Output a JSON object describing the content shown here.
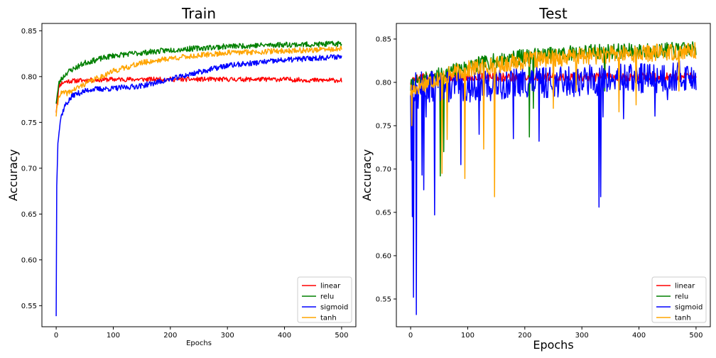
{
  "chart_data": [
    {
      "type": "line",
      "title": "Train",
      "xlabel": "Epochs",
      "ylabel": "Accuracy",
      "xlim": [
        -25,
        525
      ],
      "ylim": [
        0.527,
        0.858
      ],
      "xticks": [
        0,
        100,
        200,
        300,
        400,
        500
      ],
      "yticks": [
        0.55,
        0.6,
        0.65,
        0.7,
        0.75,
        0.8,
        0.85
      ],
      "grid": false,
      "legend_position": "lower-right",
      "series": [
        {
          "name": "linear",
          "color": "#ff0000",
          "x": [
            0,
            5,
            10,
            20,
            50,
            100,
            150,
            200,
            250,
            300,
            350,
            400,
            450,
            500
          ],
          "y": [
            0.762,
            0.79,
            0.793,
            0.795,
            0.796,
            0.797,
            0.797,
            0.797,
            0.797,
            0.797,
            0.797,
            0.797,
            0.796,
            0.796
          ],
          "noise": 0.0025,
          "seed": 11
        },
        {
          "name": "relu",
          "color": "#008000",
          "x": [
            0,
            5,
            10,
            20,
            50,
            100,
            150,
            200,
            250,
            300,
            350,
            400,
            450,
            500
          ],
          "y": [
            0.772,
            0.793,
            0.798,
            0.805,
            0.815,
            0.823,
            0.826,
            0.829,
            0.831,
            0.833,
            0.834,
            0.835,
            0.835,
            0.836
          ],
          "noise": 0.003,
          "seed": 23
        },
        {
          "name": "sigmoid",
          "color": "#0000ff",
          "x": [
            0,
            1,
            3,
            8,
            15,
            30,
            60,
            100,
            150,
            200,
            250,
            300,
            350,
            400,
            450,
            500
          ],
          "y": [
            0.54,
            0.68,
            0.73,
            0.755,
            0.768,
            0.78,
            0.786,
            0.787,
            0.79,
            0.797,
            0.805,
            0.812,
            0.815,
            0.818,
            0.82,
            0.822
          ],
          "noise": 0.003,
          "seed": 37
        },
        {
          "name": "tanh",
          "color": "#ffa500",
          "x": [
            0,
            5,
            10,
            20,
            50,
            100,
            150,
            200,
            250,
            300,
            350,
            400,
            450,
            500
          ],
          "y": [
            0.758,
            0.78,
            0.782,
            0.782,
            0.792,
            0.806,
            0.815,
            0.82,
            0.823,
            0.826,
            0.827,
            0.828,
            0.829,
            0.83
          ],
          "noise": 0.003,
          "seed": 41
        }
      ]
    },
    {
      "type": "line",
      "title": "Test",
      "xlabel": "Epochs",
      "ylabel": "Accuracy",
      "xlim": [
        -25,
        525
      ],
      "ylim": [
        0.518,
        0.868
      ],
      "xticks": [
        0,
        100,
        200,
        300,
        400,
        500
      ],
      "yticks": [
        0.55,
        0.6,
        0.65,
        0.7,
        0.75,
        0.8,
        0.85
      ],
      "grid": false,
      "legend_position": "lower-right",
      "series": [
        {
          "name": "linear",
          "color": "#ff0000",
          "x": [
            0,
            10,
            50,
            100,
            200,
            300,
            400,
            500
          ],
          "y": [
            0.8,
            0.805,
            0.806,
            0.806,
            0.806,
            0.806,
            0.806,
            0.806
          ],
          "noise": 0.005,
          "seed": 5,
          "dips": [
            [
              2,
              0.79
            ],
            [
              5,
              0.795
            ]
          ]
        },
        {
          "name": "relu",
          "color": "#008000",
          "x": [
            0,
            10,
            50,
            100,
            150,
            200,
            250,
            300,
            350,
            400,
            450,
            500
          ],
          "y": [
            0.795,
            0.8,
            0.808,
            0.818,
            0.825,
            0.83,
            0.832,
            0.835,
            0.836,
            0.836,
            0.837,
            0.838
          ],
          "noise": 0.009,
          "seed": 7,
          "dips": [
            [
              52,
              0.692
            ],
            [
              58,
              0.72
            ],
            [
              208,
              0.737
            ],
            [
              215,
              0.77
            ],
            [
              340,
              0.79
            ]
          ]
        },
        {
          "name": "sigmoid",
          "color": "#0000ff",
          "x": [
            0,
            20,
            50,
            100,
            150,
            200,
            250,
            300,
            350,
            400,
            450,
            500
          ],
          "y": [
            0.795,
            0.795,
            0.795,
            0.795,
            0.797,
            0.8,
            0.8,
            0.802,
            0.803,
            0.805,
            0.806,
            0.808
          ],
          "noise": 0.018,
          "seed": 13,
          "dips": [
            [
              1,
              0.71
            ],
            [
              3,
              0.645
            ],
            [
              5,
              0.552
            ],
            [
              10,
              0.532
            ],
            [
              13,
              0.77
            ],
            [
              20,
              0.693
            ],
            [
              23,
              0.676
            ],
            [
              27,
              0.76
            ],
            [
              42,
              0.647
            ],
            [
              88,
              0.705
            ],
            [
              120,
              0.74
            ],
            [
              180,
              0.735
            ],
            [
              225,
              0.732
            ],
            [
              330,
              0.656
            ],
            [
              333,
              0.668
            ],
            [
              337,
              0.76
            ],
            [
              373,
              0.758
            ],
            [
              428,
              0.761
            ],
            [
              450,
              0.78
            ]
          ]
        },
        {
          "name": "tanh",
          "color": "#ffa500",
          "x": [
            0,
            20,
            50,
            100,
            150,
            200,
            250,
            300,
            350,
            400,
            450,
            500
          ],
          "y": [
            0.79,
            0.798,
            0.805,
            0.815,
            0.82,
            0.825,
            0.828,
            0.83,
            0.832,
            0.833,
            0.835,
            0.836
          ],
          "noise": 0.01,
          "seed": 17,
          "dips": [
            [
              2,
              0.75
            ],
            [
              55,
              0.695
            ],
            [
              64,
              0.734
            ],
            [
              95,
              0.689
            ],
            [
              128,
              0.723
            ],
            [
              147,
              0.668
            ],
            [
              250,
              0.77
            ],
            [
              290,
              0.79
            ],
            [
              365,
              0.766
            ],
            [
              395,
              0.774
            ],
            [
              470,
              0.79
            ]
          ]
        }
      ]
    }
  ]
}
